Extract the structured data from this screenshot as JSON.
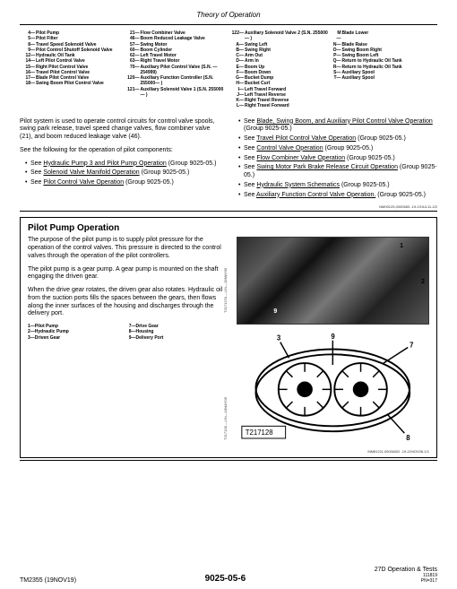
{
  "header": {
    "title": "Theory of Operation"
  },
  "legend": {
    "col1": [
      {
        "n": "4—",
        "t": "Pilot Pump"
      },
      {
        "n": "5—",
        "t": "Pilot Filter"
      },
      {
        "n": "8—",
        "t": "Travel Speed Solenoid Valve"
      },
      {
        "n": "9—",
        "t": "Pilot Control Shutoff Solenoid Valve"
      },
      {
        "n": "12—",
        "t": "Hydraulic Oil Tank"
      },
      {
        "n": "14—",
        "t": "Left Pilot Control Valve"
      },
      {
        "n": "15—",
        "t": "Right Pilot Control Valve"
      },
      {
        "n": "16—",
        "t": "Travel Pilot Control Valve"
      },
      {
        "n": "17—",
        "t": "Blade Pilot Control Valve"
      },
      {
        "n": "18—",
        "t": "Swing Boom Pilot Control Valve"
      }
    ],
    "col2": [
      {
        "n": "21—",
        "t": "Flow Combiner Valve"
      },
      {
        "n": "46—",
        "t": "Boom Reduced Leakage Valve"
      },
      {
        "n": "57—",
        "t": "Swing Motor"
      },
      {
        "n": "60—",
        "t": "Boom Cylinder"
      },
      {
        "n": "62—",
        "t": "Left Travel Motor"
      },
      {
        "n": "63—",
        "t": "Right Travel Motor"
      },
      {
        "n": "70—",
        "t": "Auxiliary Pilot Control Valve (S.N. —254999)"
      },
      {
        "n": "120—",
        "t": "Auxiliary Function Controller (S.N. 255000— )"
      },
      {
        "n": "121—",
        "t": "Auxiliary Solenoid Valve 1 (S.N. 255000— )"
      }
    ],
    "col3": [
      {
        "n": "122—",
        "t": "Auxiliary Solenoid Valve 2 (S.N. 255000— )"
      },
      {
        "n": "A—",
        "t": "Swing Left"
      },
      {
        "n": "B—",
        "t": "Swing Right"
      },
      {
        "n": "C—",
        "t": "Arm Out"
      },
      {
        "n": "D—",
        "t": "Arm In"
      },
      {
        "n": "E—",
        "t": "Boom Up"
      },
      {
        "n": "F—",
        "t": "Boom Down"
      },
      {
        "n": "G—",
        "t": "Bucket Dump"
      },
      {
        "n": "H—",
        "t": "Bucket Curl"
      },
      {
        "n": "I—",
        "t": "Left Travel Forward"
      },
      {
        "n": "J—",
        "t": "Left Travel Reverse"
      },
      {
        "n": "K—",
        "t": "Right Travel Reverse"
      },
      {
        "n": "L—",
        "t": "Right Travel Forward"
      }
    ],
    "col4": [
      {
        "n": "M—",
        "t": "Blade Lower"
      },
      {
        "n": "N—",
        "t": "Blade Raise"
      },
      {
        "n": "O—",
        "t": "Swing Boom Right"
      },
      {
        "n": "P—",
        "t": "Swing Boom Left"
      },
      {
        "n": "Q—",
        "t": "Return to Hydraulic Oil Tank"
      },
      {
        "n": "R—",
        "t": "Return to Hydraulic Oil Tank"
      },
      {
        "n": "S—",
        "t": "Auxiliary Spool"
      },
      {
        "n": "T—",
        "t": "Auxiliary Spool"
      }
    ]
  },
  "body": {
    "left": {
      "p1": "Pilot system is used to operate control circuits for control valve spools, swing park release, travel speed change valves, flow combiner valve (21), and boom reduced leakage valve (46).",
      "p2": "See the following for the operation of pilot components:",
      "items": [
        "See Hydraulic Pump 3 and Pilot Pump Operation (Group 9025-05.)",
        "See Solenoid Valve Manifold Operation (Group 9025-05.)",
        "See Pilot Control Valve Operation (Group 9025-05.)"
      ]
    },
    "right_items": [
      "See Blade, Swing Boom, and Auxiliary Pilot Control Valve Operation (Group 9025-05.)",
      "See Travel Pilot Control Valve Operation (Group 9025-05.)",
      "See Control Valve Operation (Group 9025-05.)",
      "See Flow Combiner Valve Operation (Group 9025-05.)",
      "See Swing Motor Park Brake Release Circuit Operation (Group 9025-05.)",
      "See Hydraulic System Schematics (Group 9025-05.)",
      "See Auxiliary Function Control Valve Operation. (Group 9025-05.)"
    ],
    "ref1": "NM00125,0000683 -19-19JUL11-2/2"
  },
  "section": {
    "title": "Pilot Pump Operation",
    "p1": "The purpose of the pilot pump is to supply pilot pressure for the operation of the control valves. This pressure is directed to the control valves through the operation of the pilot controllers.",
    "p2": "The pilot pump is a gear pump. A gear pump is mounted on the shaft engaging the driven gear.",
    "p3": "When the drive gear rotates, the driven gear also rotates. Hydraulic oil from the suction ports fills the spaces between the gears, then flows along the inner surfaces of the housing and discharges through the delivery port.",
    "legend1": [
      {
        "n": "1—",
        "t": "Pilot Pump"
      },
      {
        "n": "2—",
        "t": "Hydraulic Pump"
      },
      {
        "n": "3—",
        "t": "Driven Gear"
      }
    ],
    "legend2": [
      {
        "n": "7—",
        "t": "Drive Gear"
      },
      {
        "n": "8—",
        "t": "Housing"
      },
      {
        "n": "9—",
        "t": "Delivery Port"
      }
    ],
    "photo_labels": {
      "l1": "1",
      "l2": "2",
      "l9": "9"
    },
    "diagram": {
      "label": "T217128",
      "nums": {
        "n3": "3",
        "n7": "7",
        "n8": "8",
        "n9": "9"
      }
    },
    "side1": "T217127A —UN—18MAY06",
    "side2": "T217128 —UN—18MAY06",
    "ref2": "MM81211,0000ADD -19-21NOV06-1/1"
  },
  "footer": {
    "left": "TM2355 (19NOV19)",
    "center": "9025-05-6",
    "right": "27D Operation & Tests",
    "pn": "PN=317",
    "sub": "111819"
  }
}
